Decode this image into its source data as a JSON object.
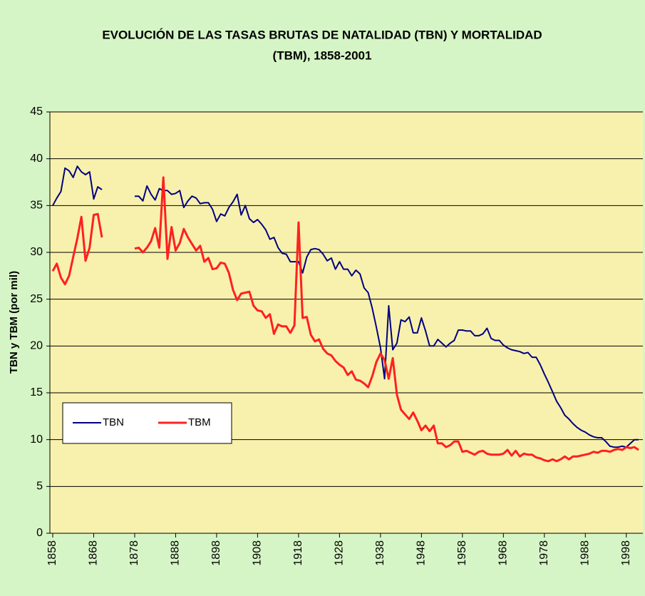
{
  "chart_data": {
    "type": "line",
    "title": [
      "EVOLUCIÓN DE LAS TASAS BRUTAS DE NATALIDAD (TBN) Y MORTALIDAD",
      "(TBM), 1858-2001"
    ],
    "y_label": "TBN y TBM (por mil)",
    "x": [
      1858,
      1859,
      1860,
      1861,
      1862,
      1863,
      1864,
      1865,
      1866,
      1867,
      1868,
      1869,
      1870,
      1871,
      1872,
      1873,
      1874,
      1875,
      1876,
      1877,
      1878,
      1879,
      1880,
      1881,
      1882,
      1883,
      1884,
      1885,
      1886,
      1887,
      1888,
      1889,
      1890,
      1891,
      1892,
      1893,
      1894,
      1895,
      1896,
      1897,
      1898,
      1899,
      1900,
      1901,
      1902,
      1903,
      1904,
      1905,
      1906,
      1907,
      1908,
      1909,
      1910,
      1911,
      1912,
      1913,
      1914,
      1915,
      1916,
      1917,
      1918,
      1919,
      1920,
      1921,
      1922,
      1923,
      1924,
      1925,
      1926,
      1927,
      1928,
      1929,
      1930,
      1931,
      1932,
      1933,
      1934,
      1935,
      1936,
      1937,
      1938,
      1939,
      1940,
      1941,
      1942,
      1943,
      1944,
      1945,
      1946,
      1947,
      1948,
      1949,
      1950,
      1951,
      1952,
      1953,
      1954,
      1955,
      1956,
      1957,
      1958,
      1959,
      1960,
      1961,
      1962,
      1963,
      1964,
      1965,
      1966,
      1967,
      1968,
      1969,
      1970,
      1971,
      1972,
      1973,
      1974,
      1975,
      1976,
      1977,
      1978,
      1979,
      1980,
      1981,
      1982,
      1983,
      1984,
      1985,
      1986,
      1987,
      1988,
      1989,
      1990,
      1991,
      1992,
      1993,
      1994,
      1995,
      1996,
      1997,
      1998,
      1999,
      2000,
      2001
    ],
    "series": [
      {
        "name": "TBN",
        "color": "#000080",
        "values": [
          35.0,
          35.8,
          36.5,
          39.0,
          38.7,
          38.0,
          39.2,
          38.6,
          38.3,
          38.6,
          35.7,
          37.0,
          36.7,
          null,
          null,
          null,
          null,
          null,
          null,
          null,
          36.0,
          36.0,
          35.5,
          37.1,
          36.2,
          35.6,
          36.8,
          36.6,
          36.6,
          36.2,
          36.3,
          36.6,
          34.8,
          35.5,
          36.0,
          35.8,
          35.2,
          35.3,
          35.3,
          34.6,
          33.3,
          34.1,
          33.9,
          34.8,
          35.4,
          36.2,
          34.0,
          35.0,
          33.6,
          33.2,
          33.5,
          33.0,
          32.4,
          31.4,
          31.6,
          30.5,
          29.9,
          29.8,
          29.0,
          29.0,
          29.0,
          27.8,
          29.5,
          30.3,
          30.4,
          30.3,
          29.8,
          29.1,
          29.4,
          28.2,
          29.0,
          28.2,
          28.2,
          27.5,
          28.1,
          27.7,
          26.2,
          25.7,
          24.0,
          22.0,
          19.8,
          16.5,
          24.3,
          19.6,
          20.3,
          22.8,
          22.6,
          23.1,
          21.4,
          21.4,
          23.0,
          21.6,
          20.0,
          20.0,
          20.7,
          20.3,
          19.9,
          20.3,
          20.6,
          21.7,
          21.7,
          21.6,
          21.6,
          21.1,
          21.1,
          21.3,
          21.9,
          20.8,
          20.6,
          20.6,
          20.1,
          19.8,
          19.6,
          19.5,
          19.4,
          19.2,
          19.3,
          18.8,
          18.8,
          18.0,
          17.0,
          16.1,
          15.1,
          14.1,
          13.4,
          12.6,
          12.2,
          11.7,
          11.3,
          11.0,
          10.8,
          10.5,
          10.3,
          10.2,
          10.2,
          9.8,
          9.3,
          9.2,
          9.2,
          9.3,
          9.2,
          9.6,
          10.0,
          10.0
        ]
      },
      {
        "name": "TBM",
        "color": "#ff2020",
        "values": [
          28.0,
          28.8,
          27.3,
          26.6,
          27.5,
          29.5,
          31.5,
          33.8,
          29.1,
          30.5,
          34.0,
          34.1,
          31.6,
          null,
          null,
          null,
          null,
          null,
          null,
          null,
          30.4,
          30.5,
          30.0,
          30.5,
          31.2,
          32.6,
          30.5,
          38.0,
          29.3,
          32.7,
          30.2,
          31.0,
          32.5,
          31.6,
          30.9,
          30.2,
          30.7,
          29.0,
          29.4,
          28.2,
          28.3,
          28.9,
          28.8,
          27.8,
          26.0,
          24.9,
          25.6,
          25.7,
          25.8,
          24.3,
          23.8,
          23.7,
          23.0,
          23.4,
          21.3,
          22.3,
          22.1,
          22.1,
          21.4,
          22.2,
          33.2,
          23.0,
          23.1,
          21.2,
          20.5,
          20.7,
          19.7,
          19.2,
          19.0,
          18.4,
          18.0,
          17.7,
          16.9,
          17.3,
          16.4,
          16.3,
          16.0,
          15.6,
          16.8,
          18.3,
          19.2,
          18.5,
          16.5,
          18.7,
          14.8,
          13.2,
          12.7,
          12.2,
          12.9,
          12.0,
          11.0,
          11.5,
          10.9,
          11.5,
          9.6,
          9.6,
          9.2,
          9.4,
          9.8,
          9.8,
          8.7,
          8.8,
          8.6,
          8.4,
          8.7,
          8.8,
          8.5,
          8.4,
          8.4,
          8.4,
          8.5,
          8.9,
          8.3,
          8.8,
          8.2,
          8.5,
          8.4,
          8.4,
          8.1,
          8.0,
          7.8,
          7.7,
          7.9,
          7.7,
          7.9,
          8.2,
          7.9,
          8.2,
          8.2,
          8.3,
          8.4,
          8.5,
          8.7,
          8.6,
          8.8,
          8.8,
          8.7,
          8.9,
          9.0,
          8.9,
          9.2,
          9.1,
          9.2,
          8.9
        ]
      }
    ],
    "xlim": [
      1858,
      2001
    ],
    "xticks": [
      1858,
      1868,
      1878,
      1888,
      1898,
      1908,
      1918,
      1928,
      1938,
      1948,
      1958,
      1968,
      1978,
      1988,
      1998
    ],
    "ylim": [
      0,
      45
    ],
    "yticks": [
      0,
      5,
      10,
      15,
      20,
      25,
      30,
      35,
      40,
      45
    ],
    "grid": true,
    "legend": "lower left"
  }
}
